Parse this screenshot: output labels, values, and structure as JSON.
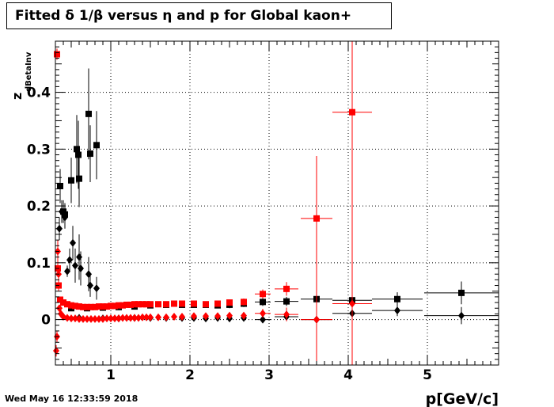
{
  "chart_data": {
    "type": "scatter",
    "title": "Fitted δ 1/β versus η and p for Global kaon+",
    "xlabel": "p[GeV/c]",
    "ylabel": "z",
    "ylabel_sub": "dBetaInv",
    "xlim": [
      0.3,
      5.9
    ],
    "ylim": [
      -0.08,
      0.49
    ],
    "x_ticks": [
      1,
      2,
      3,
      4,
      5
    ],
    "x_tick_labels": [
      "1",
      "2",
      "3",
      "4",
      "5"
    ],
    "y_ticks": [
      0,
      0.1,
      0.2,
      0.3,
      0.4
    ],
    "y_tick_labels": [
      "0",
      "0.1",
      "0.2",
      "0.3",
      "0.4"
    ],
    "grid": true,
    "colors": {
      "black_series": "#000000",
      "red_series": "#ff0000"
    },
    "series": [
      {
        "marker": "square",
        "color": "#000000",
        "points": [
          {
            "x": 0.36,
            "y": 0.235,
            "yerr": 0.03
          },
          {
            "x": 0.4,
            "y": 0.19,
            "yerr": 0.02
          },
          {
            "x": 0.42,
            "y": 0.185,
            "yerr": 0.02
          },
          {
            "x": 0.5,
            "y": 0.245,
            "yerr": 0.04
          },
          {
            "x": 0.57,
            "y": 0.3,
            "yerr": 0.06
          },
          {
            "x": 0.59,
            "y": 0.29,
            "yerr": 0.06
          },
          {
            "x": 0.6,
            "y": 0.248,
            "yerr": 0.05
          },
          {
            "x": 0.72,
            "y": 0.362,
            "yerr": 0.08
          },
          {
            "x": 0.74,
            "y": 0.292,
            "yerr": 0.05
          },
          {
            "x": 0.82,
            "y": 0.307,
            "yerr": 0.06
          },
          {
            "x": 0.5,
            "y": 0.02,
            "yerr": 0.005
          },
          {
            "x": 0.7,
            "y": 0.02,
            "yerr": 0.005
          },
          {
            "x": 0.9,
            "y": 0.021,
            "yerr": 0.004
          },
          {
            "x": 1.1,
            "y": 0.022,
            "yerr": 0.004
          },
          {
            "x": 1.3,
            "y": 0.023,
            "yerr": 0.004
          },
          {
            "x": 1.5,
            "y": 0.025,
            "yerr": 0.004
          },
          {
            "x": 1.7,
            "y": 0.026,
            "yerr": 0.004
          },
          {
            "x": 1.9,
            "y": 0.026,
            "yerr": 0.004
          },
          {
            "x": 2.05,
            "y": 0.026,
            "yerr": 0.005
          },
          {
            "x": 2.2,
            "y": 0.026,
            "yerr": 0.005
          },
          {
            "x": 2.35,
            "y": 0.025,
            "yerr": 0.005
          },
          {
            "x": 2.5,
            "y": 0.026,
            "yerr": 0.006
          },
          {
            "x": 2.68,
            "y": 0.028,
            "yerr": 0.006
          },
          {
            "x": 2.92,
            "y": 0.031,
            "yerr": 0.007,
            "xerr": 0.1
          },
          {
            "x": 3.22,
            "y": 0.032,
            "yerr": 0.008,
            "xerr": 0.15
          },
          {
            "x": 3.6,
            "y": 0.036,
            "yerr": 0.008,
            "xerr": 0.2
          },
          {
            "x": 4.05,
            "y": 0.034,
            "yerr": 0.009,
            "xerr": 0.25
          },
          {
            "x": 4.62,
            "y": 0.036,
            "yerr": 0.012,
            "xerr": 0.32
          },
          {
            "x": 5.43,
            "y": 0.047,
            "yerr": 0.02,
            "xerr": 0.47
          }
        ]
      },
      {
        "marker": "diamond",
        "color": "#000000",
        "points": [
          {
            "x": 0.35,
            "y": 0.16,
            "yerr": 0.02
          },
          {
            "x": 0.38,
            "y": 0.19,
            "yerr": 0.02
          },
          {
            "x": 0.42,
            "y": 0.18,
            "yerr": 0.02
          },
          {
            "x": 0.45,
            "y": 0.085,
            "yerr": 0.01
          },
          {
            "x": 0.48,
            "y": 0.105,
            "yerr": 0.02
          },
          {
            "x": 0.52,
            "y": 0.135,
            "yerr": 0.03
          },
          {
            "x": 0.55,
            "y": 0.095,
            "yerr": 0.03
          },
          {
            "x": 0.6,
            "y": 0.11,
            "yerr": 0.04
          },
          {
            "x": 0.62,
            "y": 0.09,
            "yerr": 0.03
          },
          {
            "x": 0.72,
            "y": 0.08,
            "yerr": 0.03
          },
          {
            "x": 0.74,
            "y": 0.06,
            "yerr": 0.02
          },
          {
            "x": 0.82,
            "y": 0.055,
            "yerr": 0.02
          },
          {
            "x": 0.6,
            "y": 0.003,
            "yerr": 0.004
          },
          {
            "x": 0.9,
            "y": 0.002,
            "yerr": 0.003
          },
          {
            "x": 1.1,
            "y": 0.002,
            "yerr": 0.003
          },
          {
            "x": 1.3,
            "y": 0.003,
            "yerr": 0.003
          },
          {
            "x": 1.5,
            "y": 0.003,
            "yerr": 0.003
          },
          {
            "x": 1.7,
            "y": 0.003,
            "yerr": 0.003
          },
          {
            "x": 1.9,
            "y": 0.003,
            "yerr": 0.003
          },
          {
            "x": 2.05,
            "y": 0.003,
            "yerr": 0.004
          },
          {
            "x": 2.2,
            "y": 0.002,
            "yerr": 0.004
          },
          {
            "x": 2.35,
            "y": 0.003,
            "yerr": 0.004
          },
          {
            "x": 2.5,
            "y": 0.002,
            "yerr": 0.005
          },
          {
            "x": 2.68,
            "y": 0.003,
            "yerr": 0.005
          },
          {
            "x": 2.92,
            "y": 0.0,
            "yerr": 0.005,
            "xerr": 0.1
          },
          {
            "x": 3.22,
            "y": 0.005,
            "yerr": 0.006,
            "xerr": 0.15
          },
          {
            "x": 3.6,
            "y": 0.0,
            "yerr": 0.007,
            "xerr": 0.2
          },
          {
            "x": 4.05,
            "y": 0.011,
            "yerr": 0.008,
            "xerr": 0.25
          },
          {
            "x": 4.62,
            "y": 0.016,
            "yerr": 0.01,
            "xerr": 0.32
          },
          {
            "x": 5.43,
            "y": 0.007,
            "yerr": 0.015,
            "xerr": 0.47
          }
        ]
      },
      {
        "marker": "square",
        "color": "#ff0000",
        "points": [
          {
            "x": 0.32,
            "y": 0.467,
            "yerr": 0.01
          },
          {
            "x": 0.33,
            "y": 0.09,
            "yerr": 0.01
          },
          {
            "x": 0.34,
            "y": 0.06,
            "yerr": 0.01
          },
          {
            "x": 0.36,
            "y": 0.035,
            "yerr": 0.005
          },
          {
            "x": 0.4,
            "y": 0.03,
            "yerr": 0.004
          },
          {
            "x": 0.45,
            "y": 0.027,
            "yerr": 0.003
          },
          {
            "x": 0.5,
            "y": 0.025,
            "yerr": 0.003
          },
          {
            "x": 0.55,
            "y": 0.024,
            "yerr": 0.003
          },
          {
            "x": 0.6,
            "y": 0.023,
            "yerr": 0.003
          },
          {
            "x": 0.65,
            "y": 0.022,
            "yerr": 0.003
          },
          {
            "x": 0.7,
            "y": 0.022,
            "yerr": 0.003
          },
          {
            "x": 0.75,
            "y": 0.022,
            "yerr": 0.003
          },
          {
            "x": 0.8,
            "y": 0.022,
            "yerr": 0.003
          },
          {
            "x": 0.85,
            "y": 0.023,
            "yerr": 0.003
          },
          {
            "x": 0.9,
            "y": 0.023,
            "yerr": 0.003
          },
          {
            "x": 0.95,
            "y": 0.023,
            "yerr": 0.003
          },
          {
            "x": 1.0,
            "y": 0.024,
            "yerr": 0.003
          },
          {
            "x": 1.05,
            "y": 0.024,
            "yerr": 0.003
          },
          {
            "x": 1.1,
            "y": 0.025,
            "yerr": 0.003
          },
          {
            "x": 1.15,
            "y": 0.025,
            "yerr": 0.003
          },
          {
            "x": 1.2,
            "y": 0.026,
            "yerr": 0.003
          },
          {
            "x": 1.25,
            "y": 0.026,
            "yerr": 0.003
          },
          {
            "x": 1.3,
            "y": 0.027,
            "yerr": 0.003
          },
          {
            "x": 1.35,
            "y": 0.027,
            "yerr": 0.003
          },
          {
            "x": 1.4,
            "y": 0.027,
            "yerr": 0.003
          },
          {
            "x": 1.45,
            "y": 0.027,
            "yerr": 0.003
          },
          {
            "x": 1.5,
            "y": 0.027,
            "yerr": 0.003
          },
          {
            "x": 1.6,
            "y": 0.027,
            "yerr": 0.003
          },
          {
            "x": 1.7,
            "y": 0.027,
            "yerr": 0.003
          },
          {
            "x": 1.8,
            "y": 0.028,
            "yerr": 0.003
          },
          {
            "x": 1.9,
            "y": 0.028,
            "yerr": 0.003
          },
          {
            "x": 2.05,
            "y": 0.028,
            "yerr": 0.004
          },
          {
            "x": 2.2,
            "y": 0.027,
            "yerr": 0.004
          },
          {
            "x": 2.35,
            "y": 0.028,
            "yerr": 0.004
          },
          {
            "x": 2.5,
            "y": 0.03,
            "yerr": 0.005
          },
          {
            "x": 2.68,
            "y": 0.031,
            "yerr": 0.006
          },
          {
            "x": 2.92,
            "y": 0.045,
            "yerr": 0.008,
            "xerr": 0.1
          },
          {
            "x": 3.22,
            "y": 0.054,
            "yerr": 0.012,
            "xerr": 0.15
          },
          {
            "x": 3.6,
            "y": 0.178,
            "yerr": 0.11,
            "xerr": 0.2
          },
          {
            "x": 4.05,
            "y": 0.365,
            "yerr": 0.5,
            "xerr": 0.25
          }
        ]
      },
      {
        "marker": "diamond",
        "color": "#ff0000",
        "points": [
          {
            "x": 0.31,
            "y": -0.055,
            "yerr": 0.01
          },
          {
            "x": 0.32,
            "y": -0.03,
            "yerr": 0.01
          },
          {
            "x": 0.33,
            "y": 0.12,
            "yerr": 0.02
          },
          {
            "x": 0.34,
            "y": 0.08,
            "yerr": 0.01
          },
          {
            "x": 0.35,
            "y": 0.02,
            "yerr": 0.005
          },
          {
            "x": 0.37,
            "y": 0.01,
            "yerr": 0.004
          },
          {
            "x": 0.4,
            "y": 0.005,
            "yerr": 0.003
          },
          {
            "x": 0.45,
            "y": 0.003,
            "yerr": 0.003
          },
          {
            "x": 0.5,
            "y": 0.002,
            "yerr": 0.003
          },
          {
            "x": 0.55,
            "y": 0.002,
            "yerr": 0.003
          },
          {
            "x": 0.6,
            "y": 0.001,
            "yerr": 0.003
          },
          {
            "x": 0.65,
            "y": 0.001,
            "yerr": 0.003
          },
          {
            "x": 0.7,
            "y": 0.001,
            "yerr": 0.003
          },
          {
            "x": 0.75,
            "y": 0.001,
            "yerr": 0.003
          },
          {
            "x": 0.8,
            "y": 0.001,
            "yerr": 0.003
          },
          {
            "x": 0.85,
            "y": 0.001,
            "yerr": 0.003
          },
          {
            "x": 0.9,
            "y": 0.001,
            "yerr": 0.003
          },
          {
            "x": 0.95,
            "y": 0.002,
            "yerr": 0.003
          },
          {
            "x": 1.0,
            "y": 0.002,
            "yerr": 0.003
          },
          {
            "x": 1.05,
            "y": 0.002,
            "yerr": 0.003
          },
          {
            "x": 1.1,
            "y": 0.002,
            "yerr": 0.003
          },
          {
            "x": 1.15,
            "y": 0.003,
            "yerr": 0.003
          },
          {
            "x": 1.2,
            "y": 0.003,
            "yerr": 0.003
          },
          {
            "x": 1.25,
            "y": 0.003,
            "yerr": 0.003
          },
          {
            "x": 1.3,
            "y": 0.003,
            "yerr": 0.003
          },
          {
            "x": 1.35,
            "y": 0.003,
            "yerr": 0.003
          },
          {
            "x": 1.4,
            "y": 0.004,
            "yerr": 0.003
          },
          {
            "x": 1.45,
            "y": 0.004,
            "yerr": 0.003
          },
          {
            "x": 1.5,
            "y": 0.004,
            "yerr": 0.003
          },
          {
            "x": 1.6,
            "y": 0.004,
            "yerr": 0.003
          },
          {
            "x": 1.7,
            "y": 0.004,
            "yerr": 0.003
          },
          {
            "x": 1.8,
            "y": 0.005,
            "yerr": 0.003
          },
          {
            "x": 1.9,
            "y": 0.005,
            "yerr": 0.003
          },
          {
            "x": 2.05,
            "y": 0.006,
            "yerr": 0.004
          },
          {
            "x": 2.2,
            "y": 0.006,
            "yerr": 0.004
          },
          {
            "x": 2.35,
            "y": 0.006,
            "yerr": 0.004
          },
          {
            "x": 2.5,
            "y": 0.007,
            "yerr": 0.005
          },
          {
            "x": 2.68,
            "y": 0.007,
            "yerr": 0.006
          },
          {
            "x": 2.92,
            "y": 0.011,
            "yerr": 0.008,
            "xerr": 0.1
          },
          {
            "x": 3.22,
            "y": 0.009,
            "yerr": 0.012,
            "xerr": 0.15
          },
          {
            "x": 3.6,
            "y": 0.0,
            "yerr": 0.08,
            "xerr": 0.2
          },
          {
            "x": 4.05,
            "y": 0.028,
            "yerr": 0.03,
            "xerr": 0.25
          }
        ]
      }
    ]
  },
  "footer": {
    "timestamp": "Wed May 16 12:33:59 2018"
  }
}
